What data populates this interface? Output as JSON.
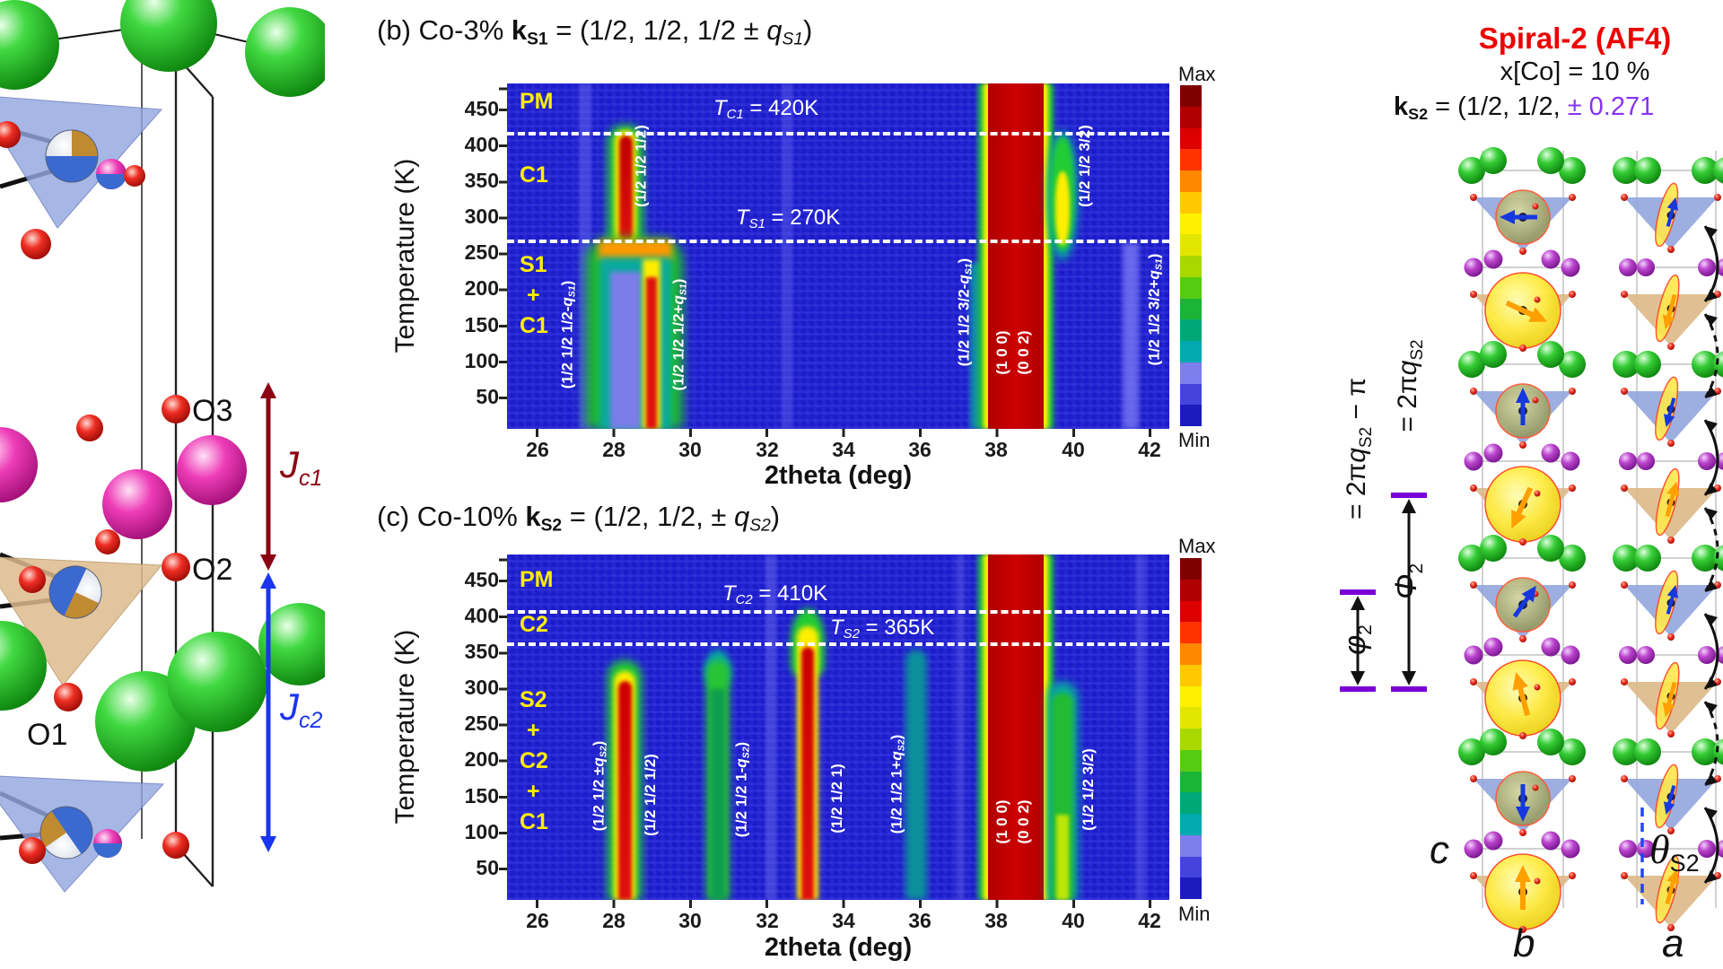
{
  "figure": {
    "left": {
      "o3": "O3",
      "o2": "O2",
      "o1": "O1",
      "jc1_main": "J",
      "jc1_sub": "c1",
      "jc2_main": "J",
      "jc2_sub": "c2",
      "jc1_color": "#8b0013",
      "jc2_color": "#1a35ee"
    },
    "panel_b": {
      "title_pre": "(b) Co-3% ",
      "title_k": "k",
      "title_ksub": "S1",
      "title_mid": " = (1/2, 1/2, 1/2 ± ",
      "title_q": "q",
      "title_qsub": "S1",
      "title_end": ")",
      "ylabel": "Temperature (K)",
      "xlabel": "2theta (deg)",
      "yticks": [
        "450",
        "400",
        "350",
        "300",
        "250",
        "200",
        "150",
        "100",
        "50"
      ],
      "xticks": [
        "26",
        "28",
        "30",
        "32",
        "34",
        "36",
        "38",
        "40",
        "42"
      ],
      "phases": [
        "PM",
        "C1",
        "S1",
        "+",
        "C1"
      ],
      "tc": {
        "sym": "T",
        "sub": "C1",
        "val": " = 420K"
      },
      "ts": {
        "sym": "T",
        "sub": "S1",
        "val": " = 270K"
      },
      "peaks": [
        {
          "pre": "(1/2 1/2 1/2-",
          "q": "q",
          "sub": "S1",
          "end": ")"
        },
        {
          "pre": "(1/2 1/2 1/2)",
          "q": "",
          "sub": "",
          "end": ""
        },
        {
          "pre": "(1/2 1/2 1/2+",
          "q": "q",
          "sub": "S1",
          "end": ")"
        },
        {
          "pre": "(1/2 1/2 3/2-",
          "q": "q",
          "sub": "S1",
          "end": ")"
        },
        {
          "pre": "(1 0 0)",
          "q": "",
          "sub": "",
          "end": ""
        },
        {
          "pre": "(0 0 2)",
          "q": "",
          "sub": "",
          "end": ""
        },
        {
          "pre": "(1/2 1/2 3/2)",
          "q": "",
          "sub": "",
          "end": ""
        },
        {
          "pre": "(1/2 1/2 3/2+",
          "q": "q",
          "sub": "S1",
          "end": ")"
        }
      ],
      "cb_max": "Max",
      "cb_min": "Min"
    },
    "panel_c": {
      "title_pre": "(c) Co-10% ",
      "title_k": "k",
      "title_ksub": "S2",
      "title_mid": " = (1/2, 1/2, ± ",
      "title_q": "q",
      "title_qsub": "S2",
      "title_end": ")",
      "ylabel": "Temperature (K)",
      "xlabel": "2theta (deg)",
      "yticks": [
        "450",
        "400",
        "350",
        "300",
        "250",
        "200",
        "150",
        "100",
        "50"
      ],
      "xticks": [
        "26",
        "28",
        "30",
        "32",
        "34",
        "36",
        "38",
        "40",
        "42"
      ],
      "phases": [
        "PM",
        "C2",
        "S2",
        "+",
        "C2",
        "+",
        "C1"
      ],
      "tc": {
        "sym": "T",
        "sub": "C2",
        "val": " = 410K"
      },
      "ts": {
        "sym": "T",
        "sub": "S2",
        "val": " = 365K"
      },
      "peaks": [
        {
          "pre": "(1/2 1/2 ±",
          "q": "q",
          "sub": "S2",
          "end": ")"
        },
        {
          "pre": "(1/2 1/2 1/2)",
          "q": "",
          "sub": "",
          "end": ""
        },
        {
          "pre": "(1/2 1/2 1-",
          "q": "q",
          "sub": "S2",
          "end": ")"
        },
        {
          "pre": "(1/2 1/2 1)",
          "q": "",
          "sub": "",
          "end": ""
        },
        {
          "pre": "(1/2 1/2 1+",
          "q": "q",
          "sub": "S2",
          "end": ")"
        },
        {
          "pre": "(1 0 0)",
          "q": "",
          "sub": "",
          "end": ""
        },
        {
          "pre": "(0 0 2)",
          "q": "",
          "sub": "",
          "end": ""
        },
        {
          "pre": "(1/2 1/2 3/2)",
          "q": "",
          "sub": "",
          "end": ""
        }
      ],
      "cb_max": "Max",
      "cb_min": "Min"
    },
    "right": {
      "title": "Spiral-2 (AF4)",
      "subtitle": "x[Co] = 10 %",
      "k_k": "k",
      "k_sub": "S2",
      "k_mid": " = (1/2, 1/2, ",
      "k_val": "± 0.271",
      "k_val_color": "#8833ee",
      "phi_cap_sym": "Φ",
      "phi_cap_sub": "2",
      "phi_cap_eq_pre": "= 2π",
      "phi_cap_q": "q",
      "phi_cap_qsub": "S2",
      "phi_low_sym": "φ",
      "phi_low_sub": "2",
      "phi_low_eq_pre": "= 2π",
      "phi_low_q": "q",
      "phi_low_qsub": "S2",
      "phi_low_end": " − π",
      "axis_c": "c",
      "axis_b": "b",
      "axis_a": "a",
      "theta_sym": "θ",
      "theta_sub": "S2"
    },
    "colorbar_colors": [
      "#800000",
      "#b00000",
      "#dd0000",
      "#ff3300",
      "#ff8800",
      "#ffc800",
      "#fff000",
      "#e2e600",
      "#a8d800",
      "#55cc11",
      "#1bb437",
      "#00a878",
      "#00aaae",
      "#7d7dee",
      "#4444dd",
      "#1b1bbe"
    ]
  },
  "chart_data": [
    {
      "type": "heatmap",
      "title": "(b) Co-3% kS1 = (1/2, 1/2, 1/2 ± qS1)",
      "xlabel": "2theta (deg)",
      "ylabel": "Temperature (K)",
      "xlim": [
        25.2,
        42.5
      ],
      "ylim": [
        10,
        487
      ],
      "xticks": [
        26,
        28,
        30,
        32,
        34,
        36,
        38,
        40,
        42
      ],
      "yticks": [
        450,
        400,
        350,
        300,
        250,
        200,
        150,
        100,
        50
      ],
      "colorbar": [
        "Min",
        "Max"
      ],
      "transitions": [
        {
          "label": "TC1",
          "value_K": 420
        },
        {
          "label": "TS1",
          "value_K": 270
        }
      ],
      "phase_regions": [
        "PM above 420 K",
        "C1 between 270 K and 420 K",
        "S1 + C1 below 270 K"
      ],
      "ridges": [
        {
          "label": "(1/2 1/2 1/2)",
          "two_theta": 28.3,
          "T_range_K": [
            270,
            415
          ],
          "intensity": "strong (red)"
        },
        {
          "label": "(1/2 1/2 1/2-qS1)",
          "two_theta": 27.9,
          "T_range_K": [
            10,
            270
          ],
          "intensity": "medium (teal/green)"
        },
        {
          "label": "(1/2 1/2 1/2+qS1)",
          "two_theta": 29.0,
          "T_range_K": [
            10,
            270
          ],
          "intensity": "strong (yellow-red)"
        },
        {
          "label": "(1/2 1/2 3/2-qS1)",
          "two_theta": 37.3,
          "T_range_K": [
            10,
            270
          ],
          "intensity": "weak (teal)"
        },
        {
          "label": "(1 0 0)/(0 0 2)",
          "two_theta": 38.5,
          "T_range_K": [
            10,
            487
          ],
          "intensity": "saturated nuclear band (dark red)"
        },
        {
          "label": "(1/2 1/2 3/2)",
          "two_theta": 39.7,
          "T_range_K": [
            270,
            415
          ],
          "intensity": "medium (green-yellow)"
        },
        {
          "label": "(1/2 1/2 3/2+qS1)",
          "two_theta": 40.9,
          "T_range_K": [
            10,
            270
          ],
          "intensity": "very weak (light blue)"
        }
      ]
    },
    {
      "type": "heatmap",
      "title": "(c) Co-10% kS2 = (1/2, 1/2, ± qS2)",
      "xlabel": "2theta (deg)",
      "ylabel": "Temperature (K)",
      "xlim": [
        25.2,
        42.5
      ],
      "ylim": [
        10,
        487
      ],
      "xticks": [
        26,
        28,
        30,
        32,
        34,
        36,
        38,
        40,
        42
      ],
      "yticks": [
        450,
        400,
        350,
        300,
        250,
        200,
        150,
        100,
        50
      ],
      "colorbar": [
        "Min",
        "Max"
      ],
      "transitions": [
        {
          "label": "TC2",
          "value_K": 410
        },
        {
          "label": "TS2",
          "value_K": 365
        }
      ],
      "phase_regions": [
        "PM above 410 K",
        "C2 between 365 K and 410 K",
        "S2 + C2 + C1 below 365 K"
      ],
      "ridges": [
        {
          "label": "(1/2 1/2 ±qS2)",
          "two_theta": 28.2,
          "T_range_K": [
            10,
            330
          ],
          "intensity": "strong (red)"
        },
        {
          "label": "(1/2 1/2 1/2)",
          "two_theta": 28.6,
          "T_range_K": [
            10,
            310
          ],
          "intensity": "overlapping shoulder"
        },
        {
          "label": "(1/2 1/2 1-qS2)",
          "two_theta": 30.6,
          "T_range_K": [
            10,
            355
          ],
          "intensity": "medium (green/teal)"
        },
        {
          "label": "(1/2 1/2 1)",
          "two_theta": 32.9,
          "T_range_K": [
            10,
            400
          ],
          "intensity": "strong (red), tip peaks near TS2"
        },
        {
          "label": "(1/2 1/2 1+qS2)",
          "two_theta": 35.8,
          "T_range_K": [
            10,
            345
          ],
          "intensity": "weak (teal)"
        },
        {
          "label": "(1 0 0)/(0 0 2)",
          "two_theta": 38.5,
          "T_range_K": [
            10,
            487
          ],
          "intensity": "saturated nuclear band (dark red)"
        },
        {
          "label": "(1/2 1/2 3/2)",
          "two_theta": 39.7,
          "T_range_K": [
            10,
            305
          ],
          "intensity": "medium (green)"
        }
      ]
    }
  ]
}
